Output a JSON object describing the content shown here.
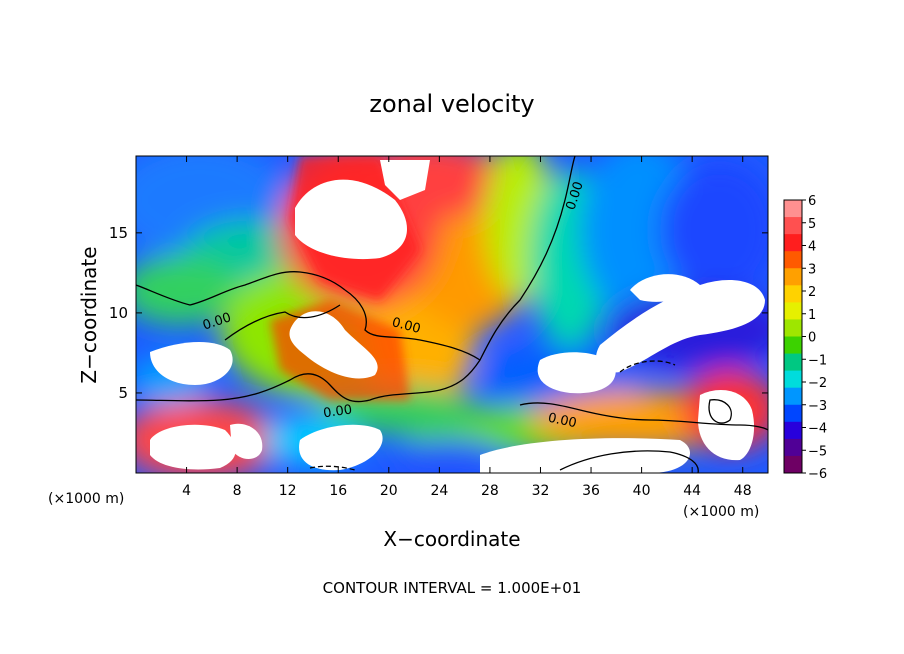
{
  "chart_data": {
    "type": "heatmap",
    "title": "zonal velocity",
    "xlabel": "X−coordinate",
    "ylabel": "Z−coordinate",
    "x_unit_left": "(×1000 m)",
    "x_unit_right": "(×1000 m)",
    "footer": "CONTOUR INTERVAL = 1.000E+01",
    "xlim": [
      0,
      50
    ],
    "ylim": [
      0,
      19.8
    ],
    "x_ticks": [
      4,
      8,
      12,
      16,
      20,
      24,
      28,
      32,
      36,
      40,
      44,
      48
    ],
    "y_ticks": [
      5,
      10,
      15
    ],
    "contour_labels": [
      "0.00",
      "0.00",
      "0.00",
      "0.00",
      "0.00"
    ],
    "colorbar": {
      "ticks": [
        6,
        5,
        4,
        3,
        2,
        1,
        0,
        -1,
        -2,
        -3,
        -4,
        -5,
        -6
      ],
      "tick_labels": [
        "6",
        "5",
        "4",
        "3",
        "2",
        "1",
        "0",
        "−1",
        "−2",
        "−3",
        "−4",
        "−5",
        "−6"
      ],
      "colors": [
        "#ff9090",
        "#ff5050",
        "#ff1e1e",
        "#ff5a00",
        "#ffa000",
        "#ffd200",
        "#e6f000",
        "#9ee600",
        "#3cd200",
        "#00c882",
        "#00dcdc",
        "#0096ff",
        "#0046ff",
        "#2800dc",
        "#500096",
        "#6e0064"
      ]
    },
    "grid": false
  }
}
